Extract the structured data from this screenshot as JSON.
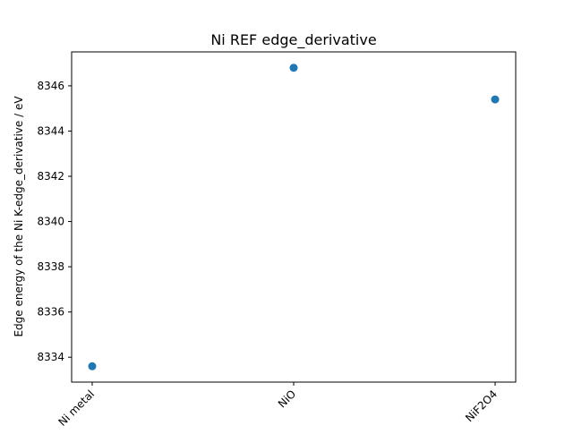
{
  "chart_data": {
    "type": "scatter",
    "title": "Ni REF edge_derivative",
    "xlabel": "",
    "ylabel": "Edge energy of the Ni K-edge_derivative / eV",
    "categories": [
      "Ni metal",
      "NiO",
      "NiF2O4"
    ],
    "values": [
      8333.6,
      8346.8,
      8345.4
    ],
    "ylim": [
      8332.9,
      8347.5
    ],
    "yticks": [
      "8334",
      "8336",
      "8338",
      "8340",
      "8342",
      "8344",
      "8346"
    ],
    "grid": false,
    "marker_color": "#1f77b4"
  }
}
